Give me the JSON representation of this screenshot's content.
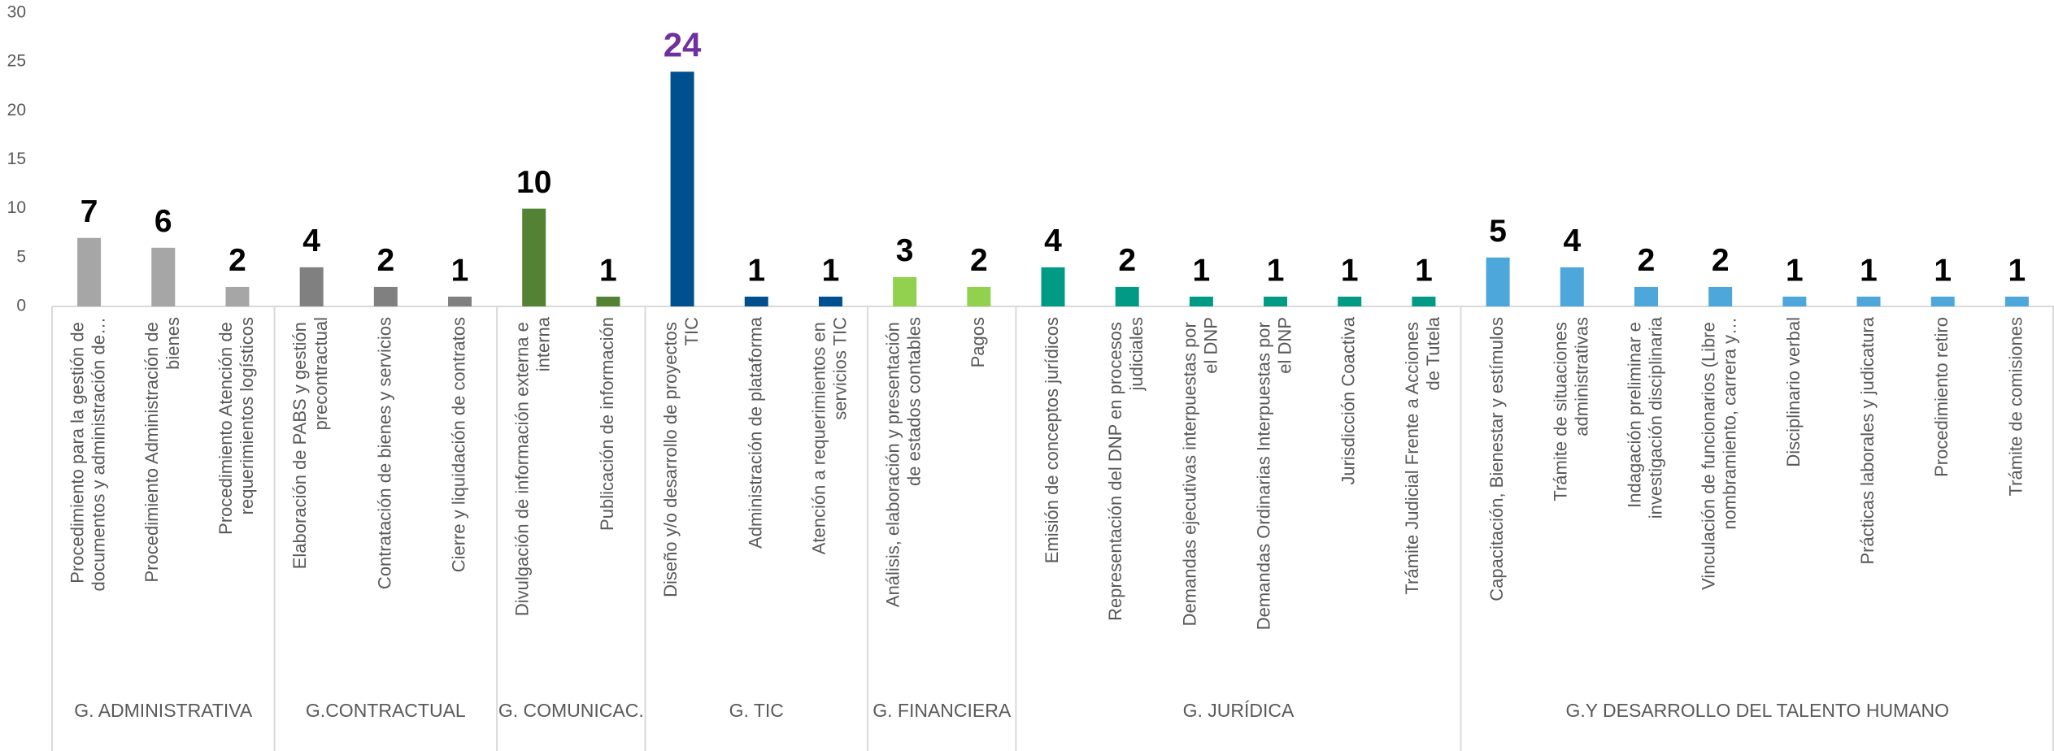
{
  "chart_data": {
    "type": "bar",
    "ylim": [
      0,
      30
    ],
    "yticks": [
      0,
      5,
      10,
      15,
      20,
      25,
      30
    ],
    "label_color": "#000000",
    "highlight_max_color": "#7030a0",
    "groups": [
      {
        "name": "G. ADMINISTRATIVA",
        "color": "#a6a6a6",
        "categories": [
          "Procedimiento para la gestión de documentos y administración de…",
          "Procedimiento Administración de bienes",
          "Procedimiento Atención de requerimientos logísticos"
        ],
        "values": [
          7,
          6,
          2
        ]
      },
      {
        "name": "G.CONTRACTUAL",
        "color": "#808080",
        "categories": [
          "Elaboración de PABS y gestión precontractual",
          "Contratación de bienes y servicios",
          "Cierre y liquidación de contratos"
        ],
        "values": [
          4,
          2,
          1
        ]
      },
      {
        "name": "G. COMUNICAC.",
        "color": "#548235",
        "categories": [
          "Divulgación de información externa e interna",
          "Publicación de información"
        ],
        "values": [
          10,
          1
        ]
      },
      {
        "name": "G. TIC",
        "color": "#00508f",
        "categories": [
          "Diseño y/o desarrollo de proyectos TIC",
          "Administración de plataforma",
          "Atención a requerimientos en servicios TIC"
        ],
        "values": [
          24,
          1,
          1
        ]
      },
      {
        "name": "G. FINANCIERA",
        "color": "#92d050",
        "categories": [
          "Análisis, elaboración y presentación de estados contables",
          "Pagos"
        ],
        "values": [
          3,
          2
        ]
      },
      {
        "name": "G. JURÍDICA",
        "color": "#009a85",
        "categories": [
          "Emisión de conceptos jurídicos",
          "Representación del DNP en procesos judiciales",
          "Demandas ejecutivas interpuestas por el DNP",
          "Demandas Ordinarias Interpuestas por el DNP",
          "Jurisdicción Coactiva",
          "Trámite Judicial Frente a Acciones de Tutela"
        ],
        "values": [
          4,
          2,
          1,
          1,
          1,
          1
        ]
      },
      {
        "name": "G.Y DESARROLLO DEL TALENTO HUMANO",
        "color": "#4ea7da",
        "categories": [
          "Capacitación, Bienestar y estímulos",
          "Trámite de situaciones administrativas",
          "Indagación preliminar e investigación disciplinaria",
          "Vinculación de funcionarios (Libre nombramiento, carrera y…",
          "Disciplinario verbal",
          "Prácticas laborales y judicatura",
          "Procedimiento retiro",
          "Trámite de comisiones"
        ],
        "values": [
          5,
          4,
          2,
          2,
          1,
          1,
          1,
          1
        ]
      }
    ]
  }
}
